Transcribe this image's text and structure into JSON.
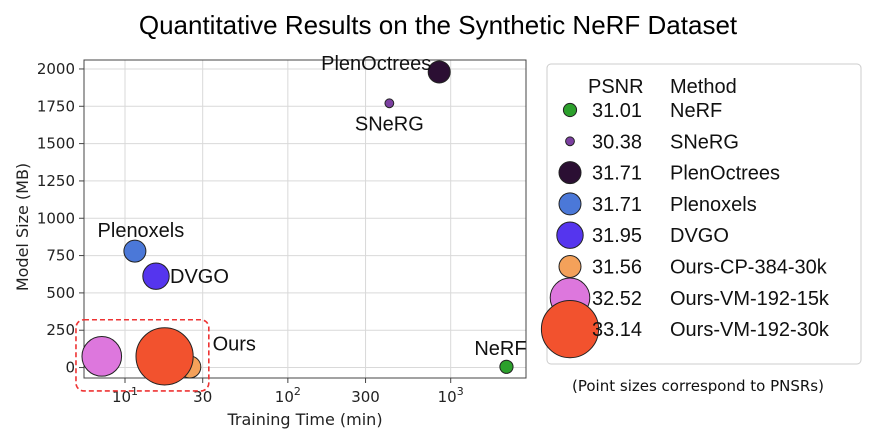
{
  "chart_data": {
    "type": "scatter",
    "title": "Quantitative Results on the Synthetic NeRF Dataset",
    "xlabel": "Training Time (min)",
    "ylabel": "Model Size (MB)",
    "x_scale": "log",
    "xlim": [
      5.6,
      2900
    ],
    "ylim": [
      -70,
      2060
    ],
    "x_ticks": [
      {
        "value": 10,
        "base": "10",
        "exp": "1"
      },
      {
        "value": 30,
        "text": "30"
      },
      {
        "value": 100,
        "base": "10",
        "exp": "2"
      },
      {
        "value": 300,
        "text": "300"
      },
      {
        "value": 1000,
        "base": "10",
        "exp": "3"
      }
    ],
    "y_ticks": [
      0,
      250,
      500,
      750,
      1000,
      1250,
      1500,
      1750,
      2000
    ],
    "grid": true,
    "points": [
      {
        "method": "NeRF",
        "psnr": "31.01",
        "x": 2200,
        "y": 5,
        "color": "#2ca02c",
        "size": 3
      },
      {
        "method": "SNeRG",
        "psnr": "30.38",
        "x": 420,
        "y": 1770,
        "color": "#7b3fa0",
        "size": 2
      },
      {
        "method": "PlenOctrees",
        "psnr": "31.71",
        "x": 850,
        "y": 1980,
        "color": "#2b0f33",
        "size": 5
      },
      {
        "method": "Plenoxels",
        "psnr": "31.71",
        "x": 11.5,
        "y": 780,
        "color": "#4b78d8",
        "size": 5
      },
      {
        "method": "DVGO",
        "psnr": "31.95",
        "x": 15.5,
        "y": 612,
        "color": "#5535ee",
        "size": 6
      },
      {
        "method": "Ours-CP-384-30k",
        "psnr": "31.56",
        "x": 25,
        "y": 4,
        "color": "#f4a15a",
        "size": 5
      },
      {
        "method": "Ours-VM-192-15k",
        "psnr": "32.52",
        "x": 7.2,
        "y": 75,
        "color": "#dd77dd",
        "size": 9
      },
      {
        "method": "Ours-VM-192-30k",
        "psnr": "33.14",
        "x": 17.5,
        "y": 75,
        "color": "#f2522e",
        "size": 13
      }
    ],
    "annotations": [
      {
        "text": "PlenOctrees",
        "x": 850,
        "y": 1980
      },
      {
        "text": "SNeRG",
        "x": 420,
        "y": 1770
      },
      {
        "text": "Plenoxels",
        "x": 11.5,
        "y": 780
      },
      {
        "text": "DVGO",
        "x": 15.5,
        "y": 612
      },
      {
        "text": "NeRF",
        "x": 2200,
        "y": 5
      },
      {
        "text": "Ours",
        "x": 17.5,
        "y": 75
      }
    ],
    "legend": {
      "placement": "right",
      "headers": {
        "psnr": "PSNR",
        "method": "Method"
      },
      "note": "(Point sizes correspond to PNSRs)"
    }
  }
}
